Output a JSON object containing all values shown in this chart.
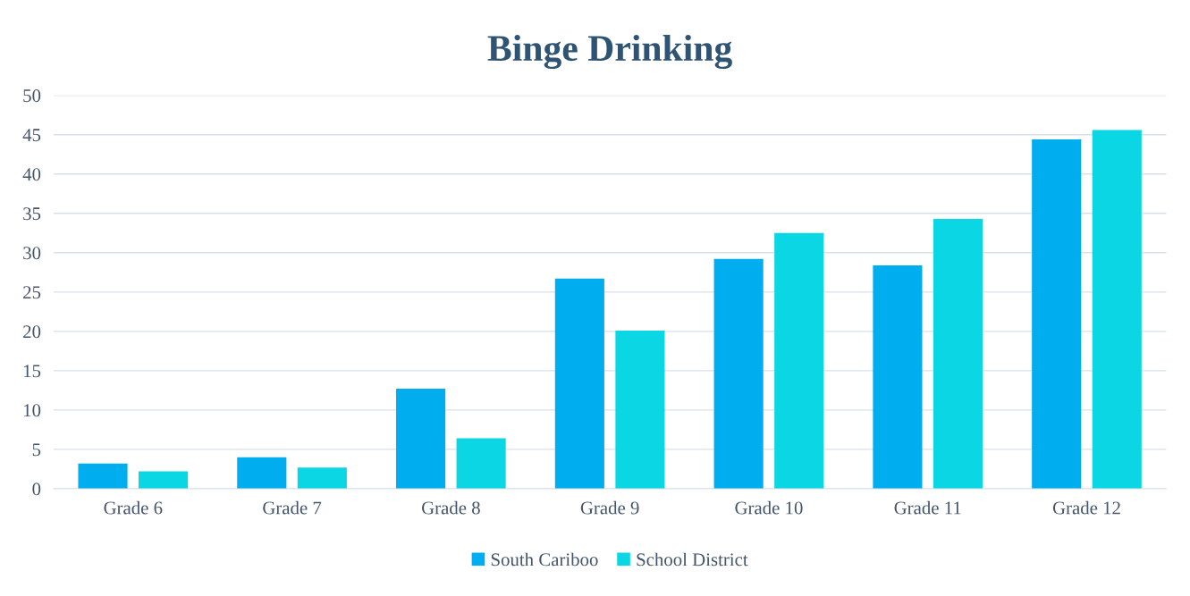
{
  "chart_data": {
    "type": "bar",
    "title": "Binge Drinking",
    "categories": [
      "Grade 6",
      "Grade 7",
      "Grade 8",
      "Grade 9",
      "Grade 10",
      "Grade 11",
      "Grade 12"
    ],
    "series": [
      {
        "name": "South Cariboo",
        "color": "#00aef0",
        "values": [
          3.2,
          4.0,
          12.7,
          26.7,
          29.2,
          28.4,
          44.4
        ]
      },
      {
        "name": "School District",
        "color": "#0bd6e4",
        "values": [
          2.2,
          2.7,
          6.4,
          20.1,
          32.5,
          34.3,
          45.6
        ]
      }
    ],
    "ylim": [
      0,
      50
    ],
    "yticks": [
      0,
      5,
      10,
      15,
      20,
      25,
      30,
      35,
      40,
      45,
      50
    ],
    "grid": "y",
    "legend": "bottom"
  }
}
